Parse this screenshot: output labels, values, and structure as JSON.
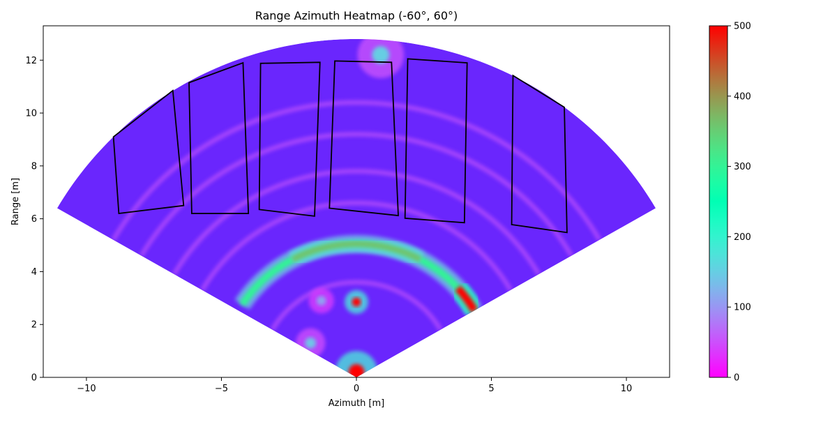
{
  "chart_data": {
    "type": "heatmap",
    "title": "Range Azimuth Heatmap (-60°, 60°)",
    "xlabel": "Azimuth [m]",
    "ylabel": "Range [m]",
    "xlim": [
      -11.6,
      11.6
    ],
    "ylim": [
      0,
      13.3
    ],
    "x_ticks": [
      -10,
      -5,
      0,
      5,
      10
    ],
    "x_tick_labels": [
      "−10",
      "−5",
      "0",
      "5",
      "10"
    ],
    "y_ticks": [
      0,
      2,
      4,
      6,
      8,
      10,
      12
    ],
    "y_tick_labels": [
      "0",
      "2",
      "4",
      "6",
      "8",
      "10",
      "12"
    ],
    "angle_range_deg": [
      -60,
      60
    ],
    "max_range": 12.8,
    "grid": false,
    "colormap": "rainbow",
    "colorbar": {
      "min": 0,
      "max": 500,
      "ticks": [
        0,
        100,
        200,
        300,
        400,
        500
      ],
      "tick_labels": [
        "0",
        "100",
        "200",
        "300",
        "400",
        "500"
      ]
    },
    "colors": {
      "background_field": "#6a26fd",
      "outline": "#000000"
    },
    "hotspots": [
      {
        "type": "arc",
        "radius": 5.05,
        "angle_from_deg": -57,
        "angle_to_deg": 60,
        "width": 0.28,
        "intensity": 300
      },
      {
        "type": "arc",
        "radius": 5.05,
        "angle_from_deg": 48,
        "angle_to_deg": 60,
        "width": 0.3,
        "intensity": 500
      },
      {
        "type": "arc",
        "radius": 5.05,
        "angle_from_deg": -28,
        "angle_to_deg": 28,
        "width": 0.25,
        "intensity": 360
      },
      {
        "type": "point",
        "x": 0,
        "y": 2.85,
        "radius": 0.28,
        "intensity": 500
      },
      {
        "type": "point",
        "x": 0,
        "y": 0.2,
        "radius": 0.5,
        "intensity": 500
      },
      {
        "type": "point",
        "x": 0.9,
        "y": 12.2,
        "radius": 0.55,
        "intensity": 150
      },
      {
        "type": "point",
        "x": -1.7,
        "y": 1.3,
        "radius": 0.35,
        "intensity": 140
      },
      {
        "type": "point",
        "x": -1.3,
        "y": 2.9,
        "radius": 0.3,
        "intensity": 110
      }
    ],
    "polygons": [
      [
        [
          -9.0,
          9.1
        ],
        [
          -6.8,
          10.85
        ],
        [
          -6.4,
          6.5
        ],
        [
          -8.8,
          6.2
        ]
      ],
      [
        [
          -6.2,
          11.15
        ],
        [
          -4.2,
          11.9
        ],
        [
          -4.0,
          6.2
        ],
        [
          -6.1,
          6.2
        ]
      ],
      [
        [
          -3.55,
          11.88
        ],
        [
          -1.35,
          11.92
        ],
        [
          -1.55,
          6.1
        ],
        [
          -3.6,
          6.35
        ]
      ],
      [
        [
          -0.8,
          11.97
        ],
        [
          1.3,
          11.92
        ],
        [
          1.55,
          6.12
        ],
        [
          -1.0,
          6.4
        ]
      ],
      [
        [
          1.9,
          12.05
        ],
        [
          4.1,
          11.9
        ],
        [
          4.0,
          5.85
        ],
        [
          1.8,
          6.02
        ]
      ],
      [
        [
          5.8,
          11.42
        ],
        [
          7.7,
          10.22
        ],
        [
          7.8,
          5.48
        ],
        [
          5.75,
          5.78
        ]
      ]
    ]
  }
}
